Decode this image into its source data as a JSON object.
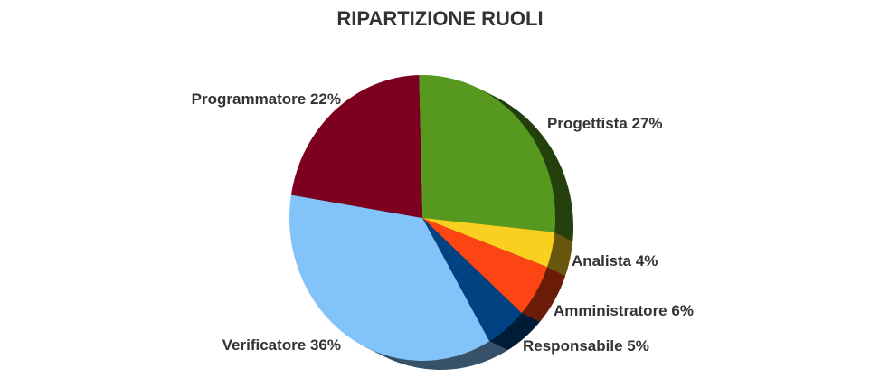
{
  "chart_data": {
    "type": "pie",
    "title": "RIPARTIZIONE RUOLI",
    "legend": "none",
    "slices": [
      {
        "label": "Progettista",
        "value": 27,
        "label_text": "Progettista 27%",
        "color": "#56991e"
      },
      {
        "label": "Analista",
        "value": 4,
        "label_text": "Analista 4%",
        "color": "#f9cf20"
      },
      {
        "label": "Amministratore",
        "value": 6,
        "label_text": "Amministratore 6%",
        "color": "#fd4413"
      },
      {
        "label": "Responsabile",
        "value": 5,
        "label_text": "Responsabile 5%",
        "color": "#004282"
      },
      {
        "label": "Verificatore",
        "value": 36,
        "label_text": "Verificatore 36%",
        "color": "#82c3fa"
      },
      {
        "label": "Programmatore",
        "value": 22,
        "label_text": "Programmatore 22%",
        "color": "#7d0021"
      }
    ]
  }
}
